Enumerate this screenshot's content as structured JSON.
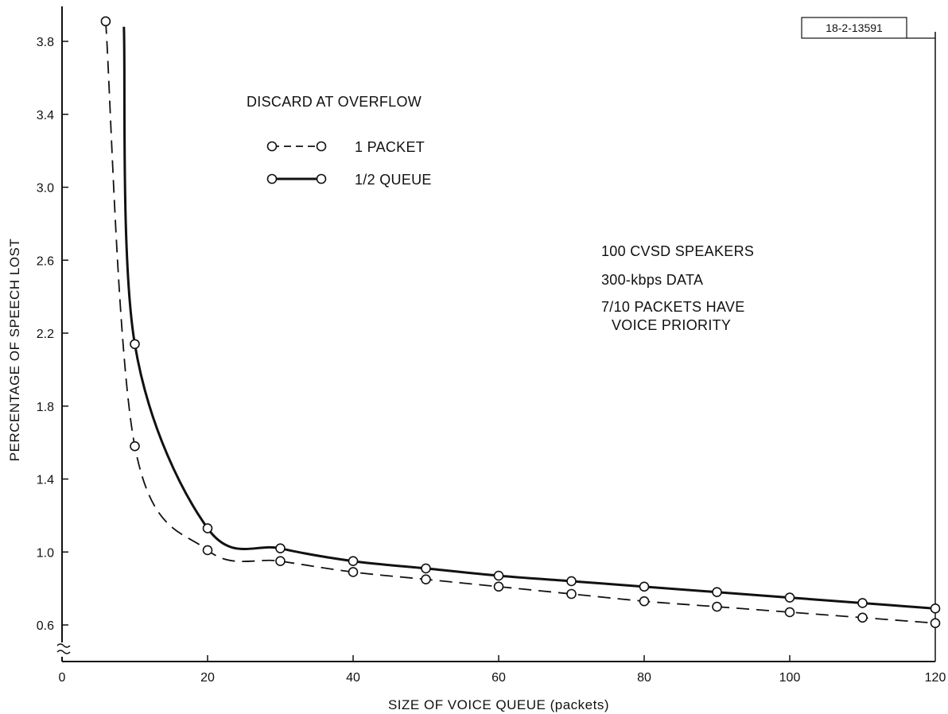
{
  "chart_data": {
    "type": "line",
    "figure_id": "18-2-13591",
    "xlabel": "SIZE OF VOICE QUEUE (packets)",
    "ylabel": "PERCENTAGE OF SPEECH LOST",
    "xlim": [
      0,
      120
    ],
    "ylim": [
      0.6,
      3.8
    ],
    "axis_break_y": true,
    "xticks": [
      "0",
      "20",
      "40",
      "60",
      "80",
      "100",
      "120"
    ],
    "yticks": [
      "0.6",
      "1.0",
      "1.4",
      "1.8",
      "2.2",
      "2.6",
      "3.0",
      "3.4",
      "3.8"
    ],
    "grid": false,
    "legend": {
      "title": "DISCARD AT OVERFLOW",
      "placement": "top-left",
      "entries": [
        "1 PACKET",
        "1/2 QUEUE"
      ]
    },
    "annotations": [
      "100 CVSD SPEAKERS",
      "300-kbps DATA",
      "7/10 PACKETS HAVE",
      "VOICE PRIORITY"
    ],
    "series": [
      {
        "name": "1 PACKET",
        "style": "dashed",
        "x": [
          6,
          10,
          20,
          30,
          40,
          50,
          60,
          70,
          80,
          90,
          100,
          110,
          120
        ],
        "y": [
          3.91,
          1.58,
          1.01,
          0.95,
          0.89,
          0.85,
          0.81,
          0.77,
          0.73,
          0.7,
          0.67,
          0.64,
          0.61
        ]
      },
      {
        "name": "1/2 QUEUE",
        "style": "solid",
        "x": [
          10,
          20,
          30,
          40,
          50,
          60,
          70,
          80,
          90,
          100,
          110,
          120
        ],
        "y": [
          2.14,
          1.13,
          1.02,
          0.95,
          0.91,
          0.87,
          0.84,
          0.81,
          0.78,
          0.75,
          0.72,
          0.69
        ]
      }
    ],
    "curve_start": {
      "1/2 QUEUE": [
        8.5,
        3.88
      ]
    }
  }
}
